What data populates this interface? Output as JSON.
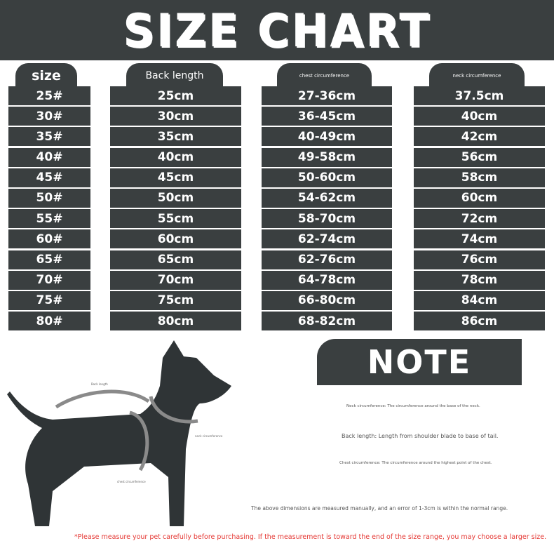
{
  "title": "SIZE CHART",
  "columns": [
    {
      "header": "size",
      "values": [
        "25#",
        "30#",
        "35#",
        "40#",
        "45#",
        "50#",
        "55#",
        "60#",
        "65#",
        "70#",
        "75#",
        "80#"
      ]
    },
    {
      "header": "Back length",
      "values": [
        "25cm",
        "30cm",
        "35cm",
        "40cm",
        "45cm",
        "50cm",
        "55cm",
        "60cm",
        "65cm",
        "70cm",
        "75cm",
        "80cm"
      ]
    },
    {
      "header": "chest circumference",
      "values": [
        "27-36cm",
        "36-45cm",
        "40-49cm",
        "49-58cm",
        "50-60cm",
        "54-62cm",
        "58-70cm",
        "62-74cm",
        "62-76cm",
        "64-78cm",
        "66-80cm",
        "68-82cm"
      ]
    },
    {
      "header": "neck circumference",
      "values": [
        "37.5cm",
        "40cm",
        "42cm",
        "56cm",
        "58cm",
        "60cm",
        "72cm",
        "74cm",
        "76cm",
        "78cm",
        "84cm",
        "86cm"
      ]
    }
  ],
  "diagram": {
    "back_label": "Back length",
    "neck_label": "neck circumference",
    "chest_label": "chest circumference",
    "colors": {
      "silhouette": "#2f3436",
      "arrow": "#8a8a8a"
    }
  },
  "note": {
    "title": "NOTE",
    "neck": "Neck circumference: The circumference around the base of the neck.",
    "back": "Back length: Length from shoulder blade to base of tail.",
    "chest": "Chest circumference: The circumference around the highest point of the chest.",
    "error": "The above dimensions are measured manually, and an error of 1-3cm is within the normal range."
  },
  "warning": "*Please measure your pet carefully before purchasing. If the measurement is toward the end of the size range, you may choose a larger size.",
  "colors": {
    "dark": "#3a3f40",
    "warning": "#e53935"
  }
}
